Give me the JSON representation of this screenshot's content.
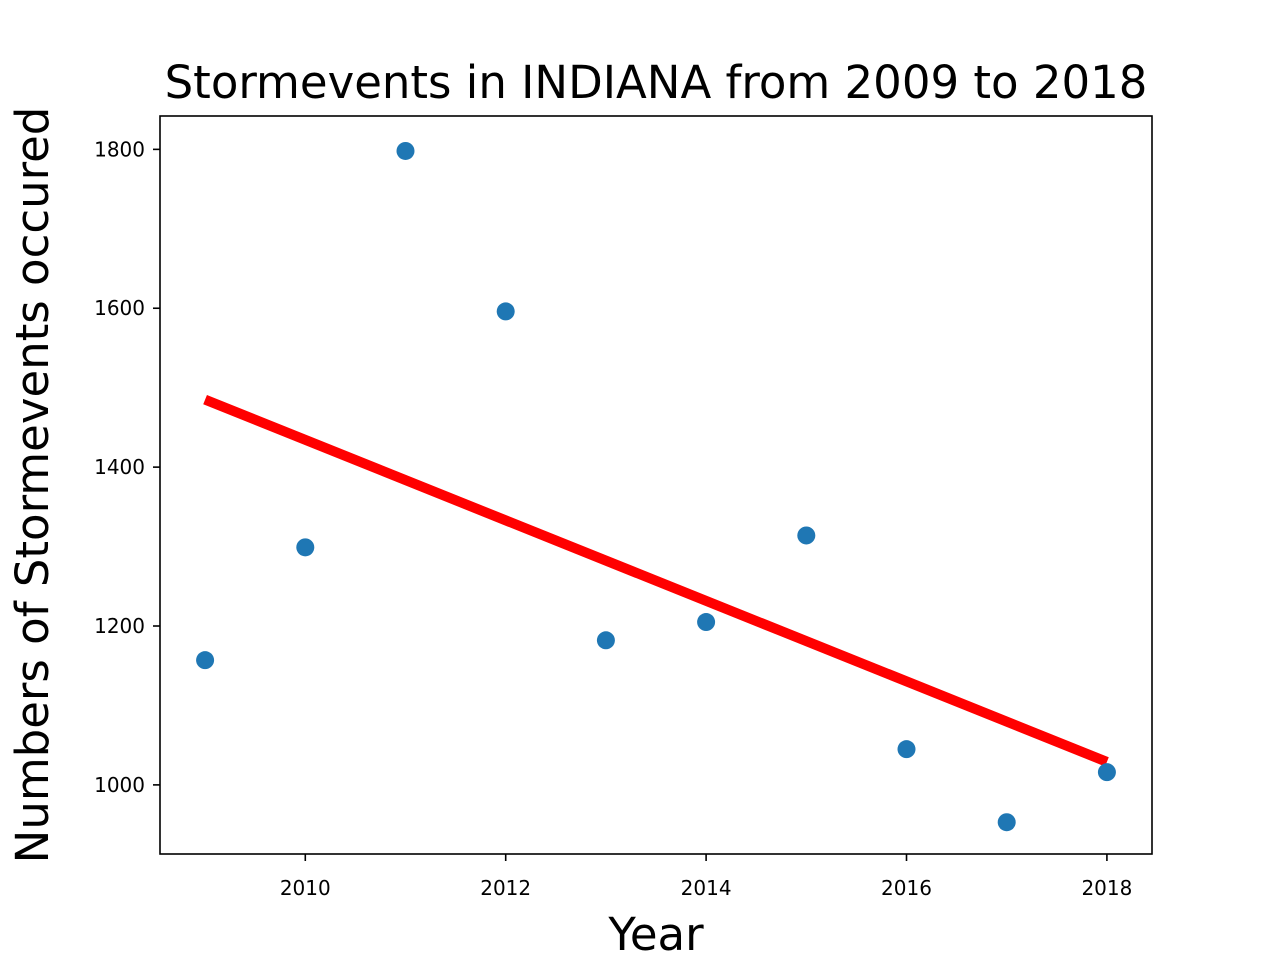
{
  "chart_data": {
    "type": "scatter",
    "title": "Stormevents in INDIANA from 2009 to 2018",
    "xlabel": "Year",
    "ylabel": "Numbers of Stormevents occured",
    "xlim": [
      2008.55,
      2018.45
    ],
    "ylim": [
      913,
      1842
    ],
    "x_ticks": [
      2010,
      2012,
      2014,
      2016,
      2018
    ],
    "y_ticks": [
      1000,
      1200,
      1400,
      1600,
      1800
    ],
    "grid": false,
    "series": [
      {
        "kind": "scatter",
        "color": "#1f77b4",
        "x": [
          2009,
          2010,
          2011,
          2012,
          2013,
          2014,
          2015,
          2016,
          2017,
          2018
        ],
        "y": [
          1157,
          1299,
          1798,
          1596,
          1182,
          1205,
          1314,
          1045,
          953,
          1016
        ]
      },
      {
        "kind": "line",
        "color": "#ff0000",
        "x": [
          2009,
          2018
        ],
        "y": [
          1485,
          1029
        ]
      }
    ]
  }
}
